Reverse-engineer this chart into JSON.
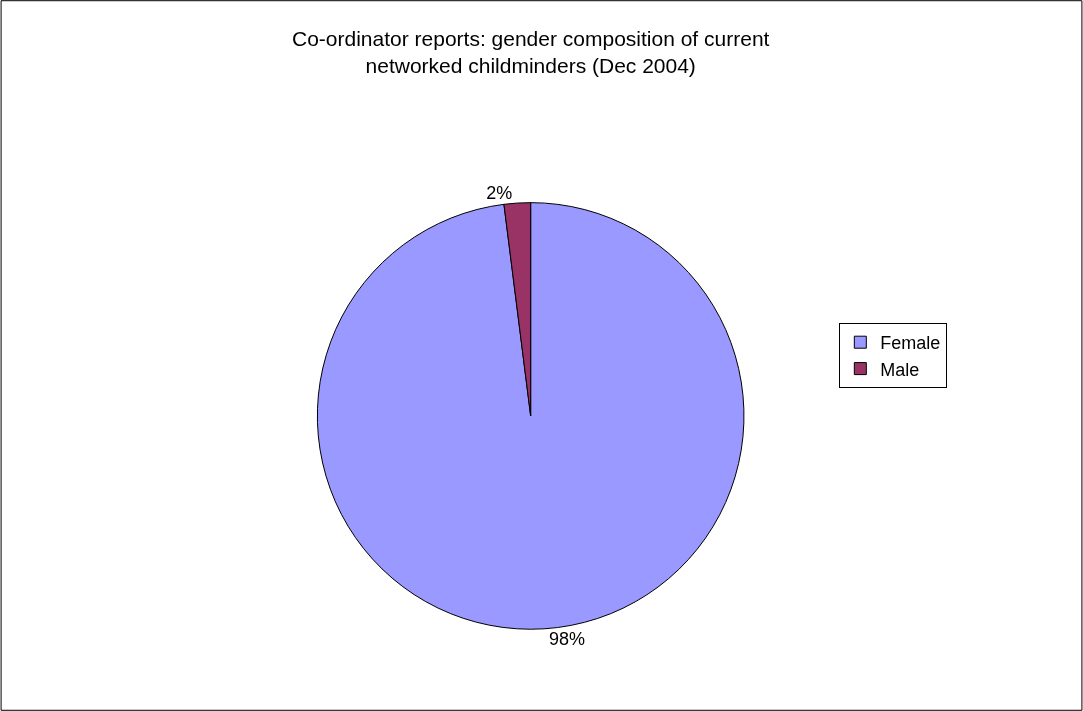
{
  "chart_data": {
    "type": "pie",
    "title": "Co-ordinator reports: gender composition of current networked childminders (Dec 2004)",
    "categories": [
      "Female",
      "Male"
    ],
    "values": [
      98,
      2
    ],
    "colors": [
      "#9999ff",
      "#993366"
    ],
    "value_labels": [
      "98%",
      "2%"
    ],
    "legend": "right"
  }
}
